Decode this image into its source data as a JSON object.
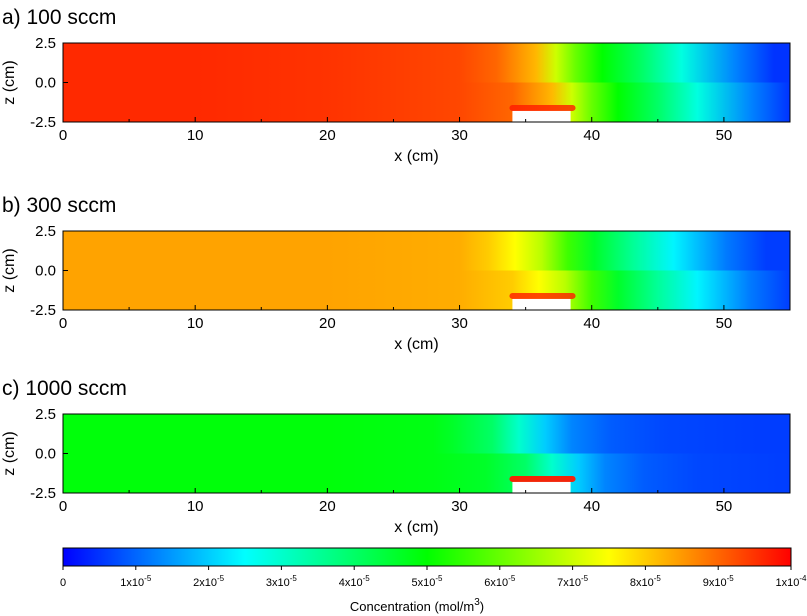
{
  "chart_data": [
    {
      "type": "heatmap",
      "title": "a) 100 sccm",
      "xlabel": "x (cm)",
      "ylabel": "z (cm)",
      "xlim": [
        0,
        55
      ],
      "ylim": [
        -2.5,
        2.5
      ],
      "x_ticks": [
        0,
        10,
        20,
        30,
        40,
        50
      ],
      "x_tick_labels": [
        "0",
        "10",
        "20",
        "30",
        "40",
        "50"
      ],
      "y_ticks": [
        2.5,
        0.0,
        -2.5
      ],
      "y_tick_labels": [
        "2.5",
        "0.0",
        "-2.5"
      ],
      "substrate_x": [
        34,
        38.4
      ],
      "substrate_z": [
        -2.5,
        -1.8
      ],
      "concentration_profile": {
        "x": [
          0,
          10,
          20,
          30,
          34,
          37,
          38.5,
          40,
          42,
          45,
          48,
          52,
          55
        ],
        "values": [
          9.6e-05,
          9.6e-05,
          9.5e-05,
          9.3e-05,
          9e-05,
          8.2e-05,
          7e-05,
          6e-05,
          5e-05,
          4e-05,
          2.8e-05,
          1.3e-05,
          5e-06
        ]
      },
      "front_shift_top": -1.2
    },
    {
      "type": "heatmap",
      "title": "b) 300 sccm",
      "xlabel": "x (cm)",
      "ylabel": "z (cm)",
      "xlim": [
        0,
        55
      ],
      "ylim": [
        -2.5,
        2.5
      ],
      "x_ticks": [
        0,
        10,
        20,
        30,
        40,
        50
      ],
      "x_tick_labels": [
        "0",
        "10",
        "20",
        "30",
        "40",
        "50"
      ],
      "y_ticks": [
        2.5,
        0.0,
        -2.5
      ],
      "y_tick_labels": [
        "2.5",
        "0.0",
        "-2.5"
      ],
      "substrate_x": [
        34,
        38.4
      ],
      "substrate_z": [
        -2.5,
        -1.8
      ],
      "concentration_profile": {
        "x": [
          0,
          20,
          30,
          34,
          36,
          38,
          40,
          42,
          45,
          48,
          52,
          55
        ],
        "values": [
          8.4e-05,
          8.4e-05,
          8.3e-05,
          8e-05,
          7.5e-05,
          6.8e-05,
          5.6e-05,
          4.6e-05,
          3.5e-05,
          2.4e-05,
          1.2e-05,
          6e-06
        ]
      },
      "front_shift_top": -1.8
    },
    {
      "type": "heatmap",
      "title": "c) 1000 sccm",
      "xlabel": "x (cm)",
      "ylabel": "z (cm)",
      "xlim": [
        0,
        55
      ],
      "ylim": [
        -2.5,
        2.5
      ],
      "x_ticks": [
        0,
        10,
        20,
        30,
        40,
        50
      ],
      "x_tick_labels": [
        "0",
        "10",
        "20",
        "30",
        "40",
        "50"
      ],
      "y_ticks": [
        2.5,
        0.0,
        -2.5
      ],
      "y_tick_labels": [
        "2.5",
        "0.0",
        "-2.5"
      ],
      "substrate_x": [
        34,
        38.4
      ],
      "substrate_z": [
        -2.5,
        -1.8
      ],
      "concentration_profile": {
        "x": [
          0,
          20,
          28,
          32,
          35,
          37,
          39,
          41,
          44,
          48,
          55
        ],
        "values": [
          4.9e-05,
          4.9e-05,
          4.8e-05,
          4.6e-05,
          4e-05,
          3e-05,
          2e-05,
          1.3e-05,
          9e-06,
          7e-06,
          6e-06
        ]
      },
      "front_shift_top": -2.5
    }
  ],
  "colorbar": {
    "label": "Concentration (mol/m",
    "label_superscript": "3",
    "label_end": ")",
    "range": [
      0,
      0.0001
    ],
    "colors": [
      "#0000ff",
      "#00ffff",
      "#00ff00",
      "#ffff00",
      "#ff0000"
    ],
    "ticks": [
      0,
      1e-05,
      2e-05,
      3e-05,
      4e-05,
      5e-05,
      6e-05,
      7e-05,
      8e-05,
      9e-05,
      0.0001
    ],
    "tick_labels": [
      {
        "base": "0",
        "exp": ""
      },
      {
        "base": "1x10",
        "exp": "-5"
      },
      {
        "base": "2x10",
        "exp": "-5"
      },
      {
        "base": "3x10",
        "exp": "-5"
      },
      {
        "base": "4x10",
        "exp": "-5"
      },
      {
        "base": "5x10",
        "exp": "-5"
      },
      {
        "base": "6x10",
        "exp": "-5"
      },
      {
        "base": "7x10",
        "exp": "-5"
      },
      {
        "base": "8x10",
        "exp": "-5"
      },
      {
        "base": "9x10",
        "exp": "-5"
      },
      {
        "base": "1x10",
        "exp": "-4"
      }
    ]
  }
}
